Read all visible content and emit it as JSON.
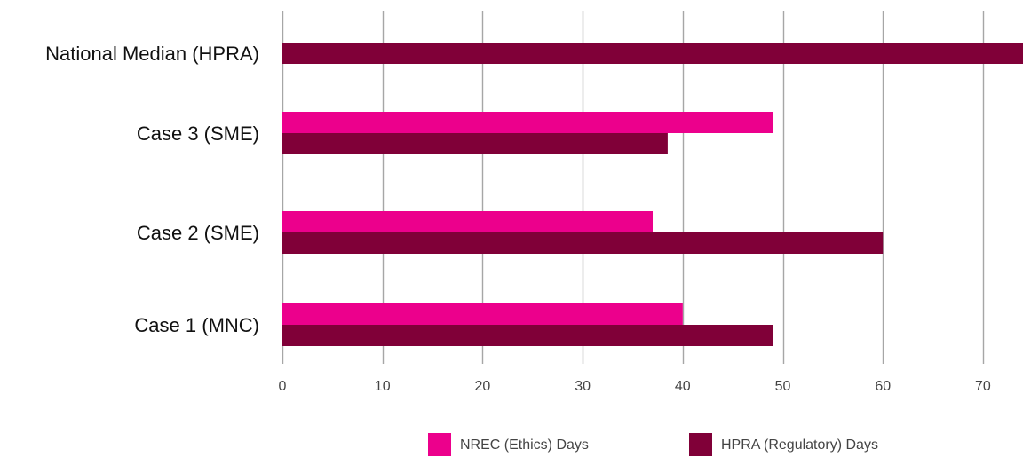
{
  "chart_data": {
    "type": "bar",
    "orientation": "horizontal",
    "categories": [
      "National Median (HPRA)",
      "Case 3 (SME)",
      "Case 2 (SME)",
      "Case 1 (MNC)"
    ],
    "series": [
      {
        "name": "NREC (Ethics) Days",
        "color": "#ec008c",
        "values": [
          null,
          49,
          37,
          40
        ]
      },
      {
        "name": "HPRA (Regulatory) Days",
        "color": "#800038",
        "values": [
          74,
          38.5,
          60,
          49
        ]
      }
    ],
    "xlim": [
      0,
      74
    ],
    "x_ticks": [
      0,
      10,
      20,
      30,
      40,
      50,
      60,
      70
    ],
    "grid": true,
    "legend": "bottom"
  }
}
